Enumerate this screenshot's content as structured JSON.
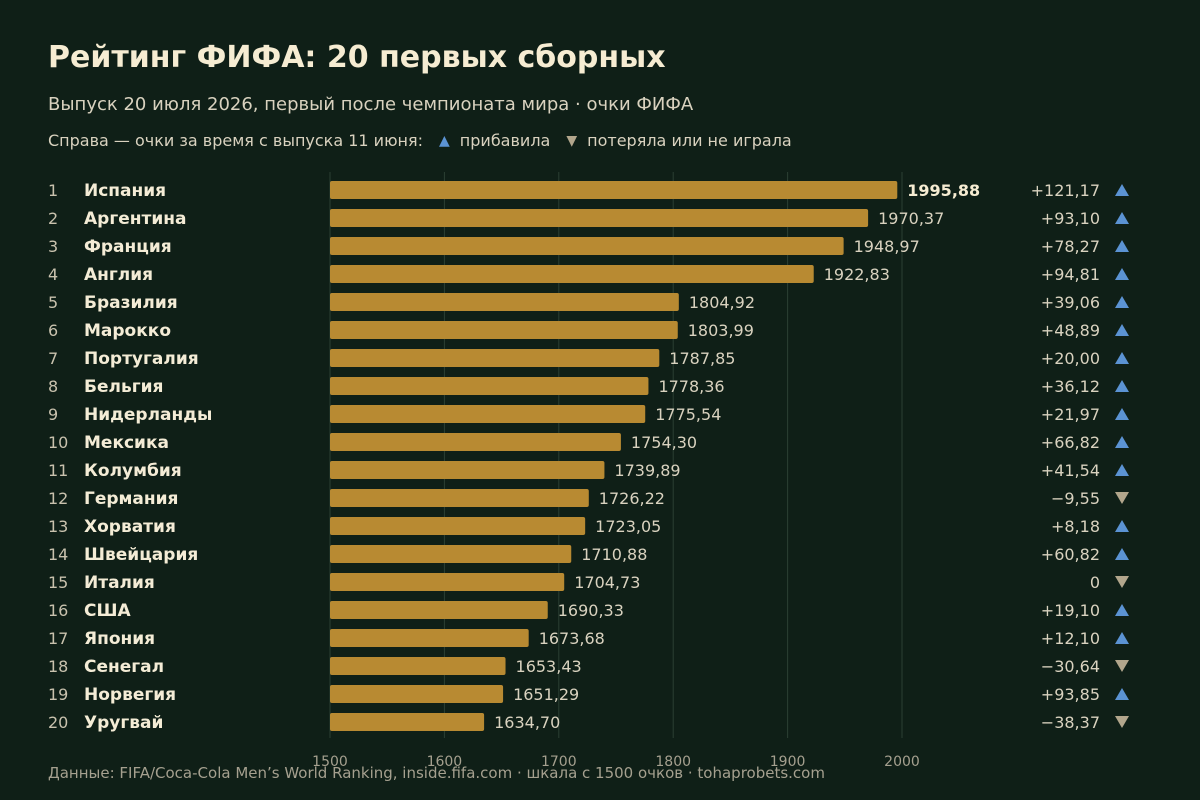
{
  "title": "Рейтинг ФИФА: 20 первых сборных",
  "subtitle": "Выпуск 20 июля 2026, первый после чемпионата мира · очки ФИФА",
  "legend": {
    "prefix": "Справа — очки за время с выпуска 11 июня:",
    "up_label": "прибавила",
    "down_label": "потеряла или не играла",
    "up_symbol": "▲",
    "down_symbol": "▼"
  },
  "source": "Данные: FIFA/Coca-Cola Men’s World Ranking, inside.fifa.com · шкала с 1500 очков · tohaprobets.com",
  "colors": {
    "background": "#0f1f17",
    "bar": "#b88a32",
    "up": "#5b93d3",
    "down": "#b2a68c",
    "grid": "#2b3f33"
  },
  "chart_data": {
    "type": "bar",
    "orientation": "horizontal",
    "xlim": [
      1500,
      2000
    ],
    "xticks": [
      1500,
      1600,
      1700,
      1800,
      1900,
      2000
    ],
    "grid": true,
    "ranks": [
      1,
      2,
      3,
      4,
      5,
      6,
      7,
      8,
      9,
      10,
      11,
      12,
      13,
      14,
      15,
      16,
      17,
      18,
      19,
      20
    ],
    "categories": [
      "Испания",
      "Аргентина",
      "Франция",
      "Англия",
      "Бразилия",
      "Марокко",
      "Португалия",
      "Бельгия",
      "Нидерланды",
      "Мексика",
      "Колумбия",
      "Германия",
      "Хорватия",
      "Швейцария",
      "Италия",
      "США",
      "Япония",
      "Сенегал",
      "Норвегия",
      "Уругвай"
    ],
    "values": [
      1995.88,
      1970.37,
      1948.97,
      1922.83,
      1804.92,
      1803.99,
      1787.85,
      1778.36,
      1775.54,
      1754.3,
      1739.89,
      1726.22,
      1723.05,
      1710.88,
      1704.73,
      1690.33,
      1673.68,
      1653.43,
      1651.29,
      1634.7
    ],
    "value_labels": [
      "1995,88",
      "1970,37",
      "1948,97",
      "1922,83",
      "1804,92",
      "1803,99",
      "1787,85",
      "1778,36",
      "1775,54",
      "1754,30",
      "1739,89",
      "1726,22",
      "1723,05",
      "1710,88",
      "1704,73",
      "1690,33",
      "1673,68",
      "1653,43",
      "1651,29",
      "1634,70"
    ],
    "changes": [
      121.17,
      93.1,
      78.27,
      94.81,
      39.06,
      48.89,
      20.0,
      36.12,
      21.97,
      66.82,
      41.54,
      -9.55,
      8.18,
      60.82,
      0,
      19.1,
      12.1,
      -30.64,
      93.85,
      -38.37
    ],
    "change_labels": [
      "+121,17",
      "+93,10",
      "+78,27",
      "+94,81",
      "+39,06",
      "+48,89",
      "+20,00",
      "+36,12",
      "+21,97",
      "+66,82",
      "+41,54",
      "−9,55",
      "+8,18",
      "+60,82",
      "0",
      "+19,10",
      "+12,10",
      "−30,64",
      "+93,85",
      "−38,37"
    ]
  }
}
